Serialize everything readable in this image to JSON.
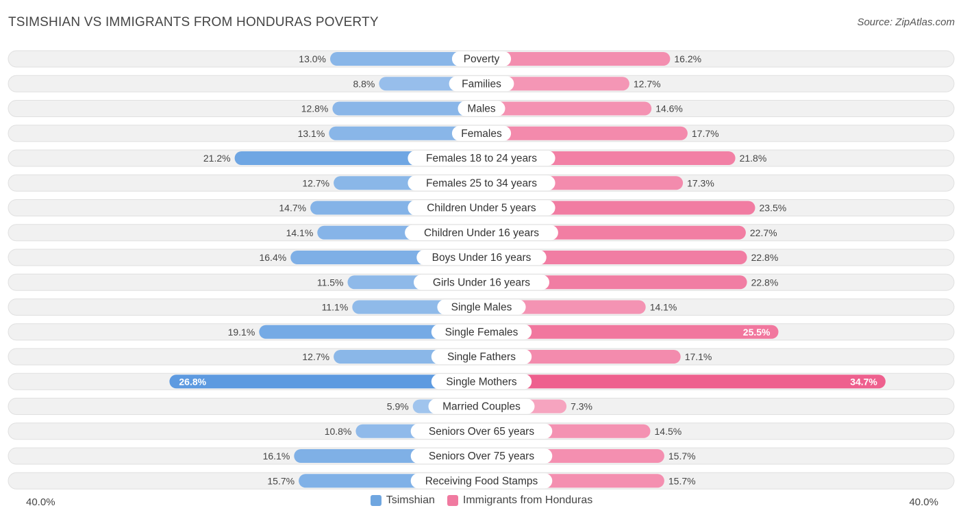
{
  "header": {
    "title": "TSIMSHIAN VS IMMIGRANTS FROM HONDURAS POVERTY",
    "source": "Source: ZipAtlas.com"
  },
  "axis": {
    "left_label": "40.0%",
    "right_label": "40.0%"
  },
  "legend": {
    "left": {
      "label": "Tsimshian",
      "color": "#6fa6e0"
    },
    "right": {
      "label": "Immigrants from Honduras",
      "color": "#f07aa0"
    }
  },
  "chart_data": {
    "type": "bar",
    "orientation": "diverging-horizontal",
    "title": "TSIMSHIAN VS IMMIGRANTS FROM HONDURAS POVERTY",
    "xlim": [
      0,
      40
    ],
    "unit": "%",
    "categories": [
      "Poverty",
      "Families",
      "Males",
      "Females",
      "Females 18 to 24 years",
      "Females 25 to 34 years",
      "Children Under 5 years",
      "Children Under 16 years",
      "Boys Under 16 years",
      "Girls Under 16 years",
      "Single Males",
      "Single Females",
      "Single Fathers",
      "Single Mothers",
      "Married Couples",
      "Seniors Over 65 years",
      "Seniors Over 75 years",
      "Receiving Food Stamps"
    ],
    "series": [
      {
        "name": "Tsimshian",
        "side": "left",
        "values": [
          13.0,
          8.8,
          12.8,
          13.1,
          21.2,
          12.7,
          14.7,
          14.1,
          16.4,
          11.5,
          11.1,
          19.1,
          12.7,
          26.8,
          5.9,
          10.8,
          16.1,
          15.7
        ],
        "labels": [
          "13.0%",
          "8.8%",
          "12.8%",
          "13.1%",
          "21.2%",
          "12.7%",
          "14.7%",
          "14.1%",
          "16.4%",
          "11.5%",
          "11.1%",
          "19.1%",
          "12.7%",
          "26.8%",
          "5.9%",
          "10.8%",
          "16.1%",
          "15.7%"
        ]
      },
      {
        "name": "Immigrants from Honduras",
        "side": "right",
        "values": [
          16.2,
          12.7,
          14.6,
          17.7,
          21.8,
          17.3,
          23.5,
          22.7,
          22.8,
          22.8,
          14.1,
          25.5,
          17.1,
          34.7,
          7.3,
          14.5,
          15.7,
          15.7
        ],
        "labels": [
          "16.2%",
          "12.7%",
          "14.6%",
          "17.7%",
          "21.8%",
          "17.3%",
          "23.5%",
          "22.7%",
          "22.8%",
          "22.8%",
          "14.1%",
          "25.5%",
          "17.1%",
          "34.7%",
          "7.3%",
          "14.5%",
          "15.7%",
          "15.7%"
        ]
      }
    ]
  }
}
